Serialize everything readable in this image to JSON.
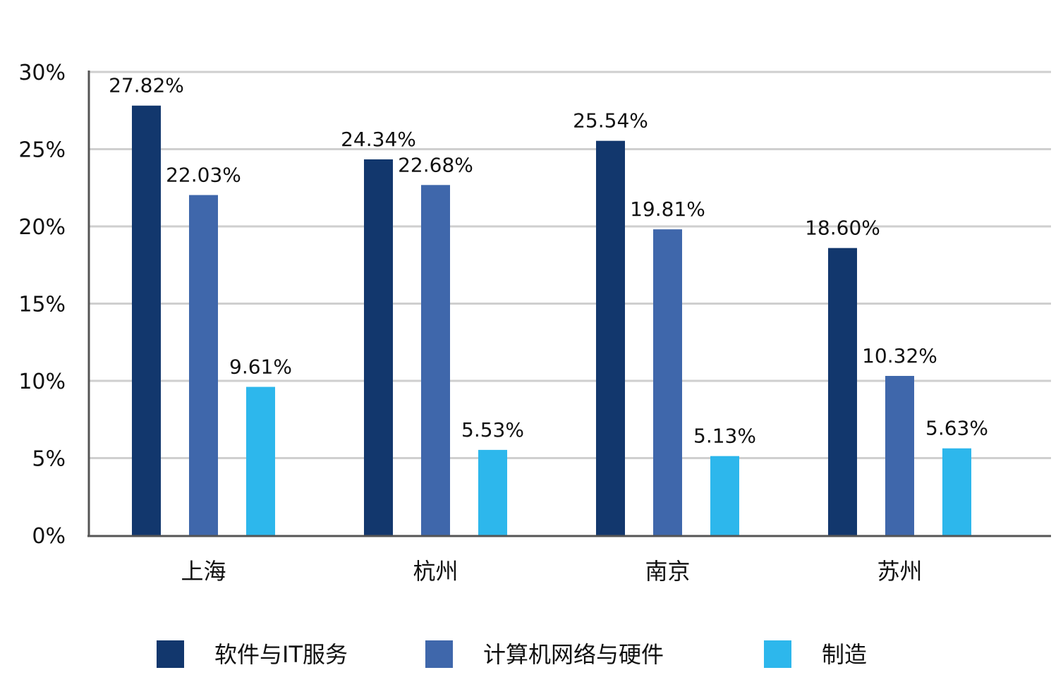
{
  "chart_data": {
    "type": "bar",
    "categories": [
      "上海",
      "杭州",
      "南京",
      "苏州"
    ],
    "series": [
      {
        "name": "软件与IT服务",
        "color": "#12376d",
        "values": [
          27.82,
          24.34,
          25.54,
          18.6
        ],
        "labels": [
          "27.82%",
          "24.34%",
          "25.54%",
          "18.60%"
        ]
      },
      {
        "name": "计算机网络与硬件",
        "color": "#3f67ab",
        "values": [
          22.03,
          22.68,
          19.81,
          10.32
        ],
        "labels": [
          "22.03%",
          "22.68%",
          "19.81%",
          "10.32%"
        ]
      },
      {
        "name": "制造",
        "color": "#2db7ec",
        "values": [
          9.61,
          5.53,
          5.13,
          5.63
        ],
        "labels": [
          "9.61%",
          "5.53%",
          "5.13%",
          "5.63%"
        ]
      }
    ],
    "ylim": [
      0,
      30
    ],
    "yticks": [
      "0%",
      "5%",
      "10%",
      "15%",
      "20%",
      "25%",
      "30%"
    ],
    "ytick_values": [
      0,
      5,
      10,
      15,
      20,
      25,
      30
    ],
    "grid": true,
    "legend": "bottom"
  }
}
